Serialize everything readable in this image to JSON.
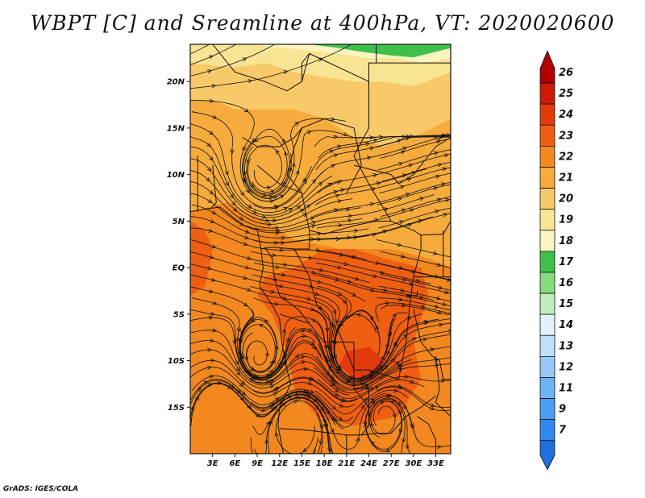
{
  "title": "WBPT [C] and Sreamline at 400hPa, VT: 2020020600",
  "credit": "GrADS: IGES/COLA",
  "map": {
    "lon_range": [
      0,
      35
    ],
    "lat_range": [
      -20,
      24
    ],
    "lon_ticks": [
      "3E",
      "6E",
      "9E",
      "12E",
      "15E",
      "18E",
      "21E",
      "24E",
      "27E",
      "30E",
      "33E"
    ],
    "lon_tick_values": [
      3,
      6,
      9,
      12,
      15,
      18,
      21,
      24,
      27,
      30,
      33
    ],
    "lat_ticks": [
      "20N",
      "15N",
      "10N",
      "5N",
      "EQ",
      "5S",
      "10S",
      "15S"
    ],
    "lat_tick_values": [
      20,
      15,
      10,
      5,
      0,
      -5,
      -10,
      -15
    ]
  },
  "colorbar": {
    "labels": [
      "7",
      "9",
      "11",
      "12",
      "13",
      "14",
      "15",
      "16",
      "17",
      "18",
      "19",
      "20",
      "21",
      "22",
      "23",
      "24",
      "25",
      "26"
    ],
    "colors": [
      "#1e6fe0",
      "#2f87f0",
      "#4a9cf5",
      "#6fb3f7",
      "#96c9f9",
      "#bfe0fb",
      "#e3f3fd",
      "#bfeebd",
      "#86db7e",
      "#3fc04c",
      "#f8f5c0",
      "#f9e494",
      "#f8c968",
      "#f6ab3c",
      "#f2881f",
      "#ee5f12",
      "#e33a0c",
      "#cc1b08",
      "#b00000"
    ]
  },
  "regions": {
    "north_band": "#3fc04c",
    "band_19": "#f8f5c0",
    "band_20": "#f9e494",
    "band_21": "#f8c968",
    "band_22": "#f6ab3c",
    "band_23": "#f2881f",
    "band_24": "#ee5f12",
    "band_25": "#e33a0c"
  }
}
